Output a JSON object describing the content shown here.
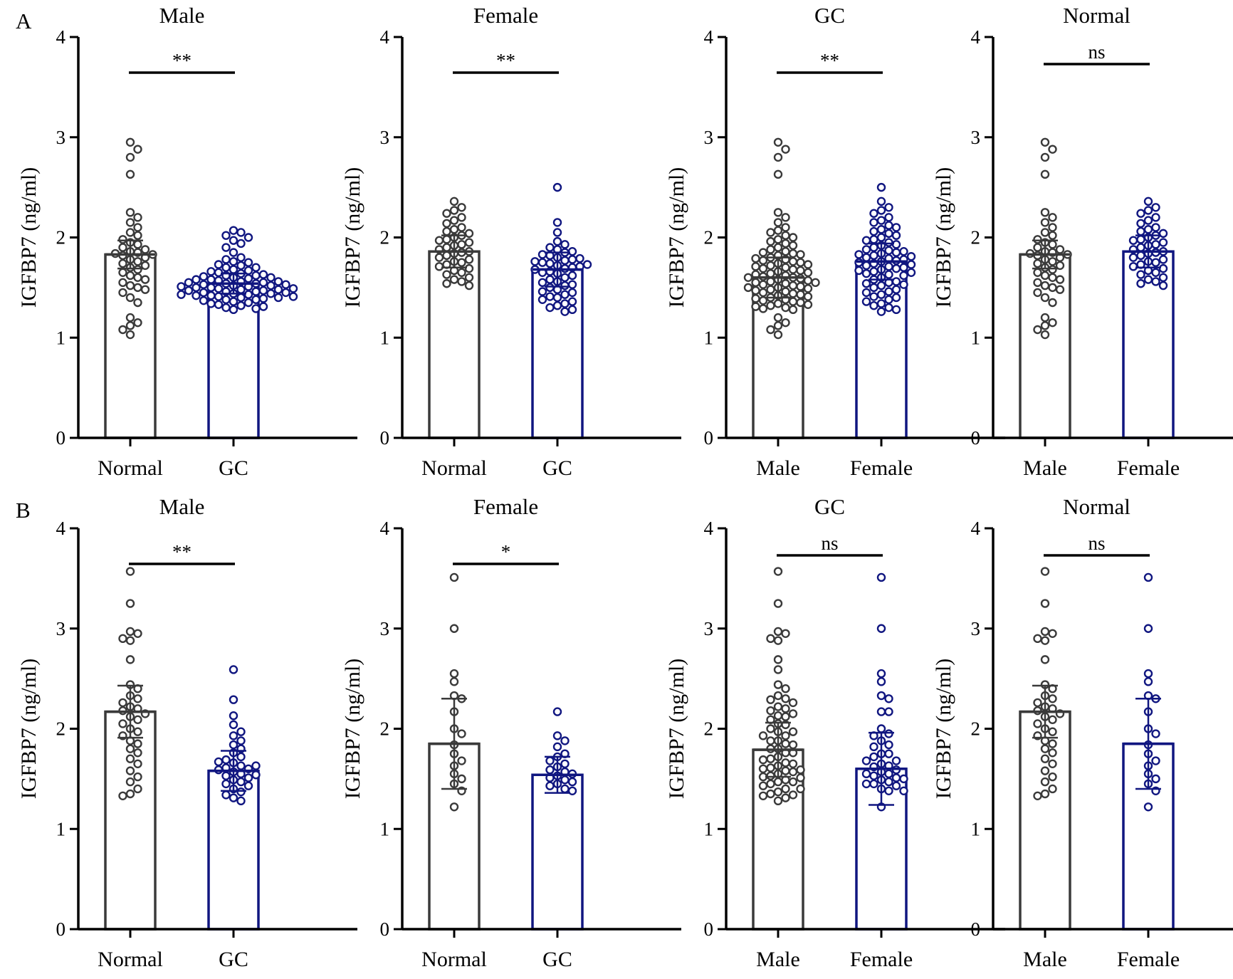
{
  "panel_labels": [
    "A",
    "B"
  ],
  "colors": {
    "normal": "#3a3a3a",
    "gc": "#101680",
    "axis": "#000000"
  },
  "chart_data": [
    {
      "type": "bar",
      "title": "Male",
      "row": "A",
      "ylabel": "IGFBP7 (ng/ml)",
      "ylim": [
        0,
        4
      ],
      "yticks": [
        "0",
        "1",
        "2",
        "3",
        "4"
      ],
      "categories": [
        "Normal",
        "GC"
      ],
      "significance": "**",
      "series": [
        {
          "category": "Normal",
          "color": "#3a3a3a",
          "mean": 1.83,
          "sd": 0.14,
          "points": [
            2.95,
            2.88,
            2.8,
            2.63,
            2.25,
            2.2,
            2.15,
            2.1,
            2.05,
            2.02,
            1.98,
            1.95,
            1.93,
            1.9,
            1.88,
            1.86,
            1.85,
            1.84,
            1.83,
            1.82,
            1.8,
            1.78,
            1.76,
            1.74,
            1.72,
            1.7,
            1.68,
            1.65,
            1.62,
            1.6,
            1.58,
            1.55,
            1.52,
            1.5,
            1.48,
            1.45,
            1.4,
            1.35,
            1.2,
            1.15,
            1.12,
            1.08,
            1.03
          ]
        },
        {
          "category": "GC",
          "color": "#101680",
          "mean": 1.54,
          "sd": 0.1,
          "points": [
            2.07,
            2.05,
            2.02,
            2.0,
            1.97,
            1.94,
            1.9,
            1.85,
            1.8,
            1.78,
            1.76,
            1.75,
            1.73,
            1.72,
            1.7,
            1.7,
            1.68,
            1.67,
            1.66,
            1.65,
            1.64,
            1.63,
            1.62,
            1.62,
            1.61,
            1.6,
            1.6,
            1.59,
            1.58,
            1.58,
            1.57,
            1.56,
            1.56,
            1.55,
            1.55,
            1.54,
            1.54,
            1.53,
            1.53,
            1.52,
            1.52,
            1.51,
            1.51,
            1.5,
            1.5,
            1.49,
            1.49,
            1.48,
            1.48,
            1.47,
            1.47,
            1.46,
            1.46,
            1.45,
            1.45,
            1.44,
            1.44,
            1.43,
            1.43,
            1.42,
            1.42,
            1.41,
            1.41,
            1.4,
            1.4,
            1.39,
            1.38,
            1.38,
            1.37,
            1.36,
            1.35,
            1.34,
            1.33,
            1.32,
            1.31,
            1.3,
            1.29,
            1.28
          ]
        }
      ]
    },
    {
      "type": "bar",
      "title": "Female",
      "row": "A",
      "ylabel": "IGFBP7 (ng/ml)",
      "ylim": [
        0,
        4
      ],
      "yticks": [
        "0",
        "1",
        "2",
        "3",
        "4"
      ],
      "categories": [
        "Normal",
        "GC"
      ],
      "significance": "**",
      "series": [
        {
          "category": "Normal",
          "color": "#3a3a3a",
          "mean": 1.86,
          "sd": 0.16,
          "points": [
            2.36,
            2.3,
            2.27,
            2.24,
            2.2,
            2.17,
            2.14,
            2.1,
            2.08,
            2.06,
            2.04,
            2.02,
            2.0,
            1.98,
            1.97,
            1.95,
            1.93,
            1.92,
            1.9,
            1.88,
            1.86,
            1.85,
            1.84,
            1.82,
            1.8,
            1.78,
            1.76,
            1.75,
            1.73,
            1.71,
            1.69,
            1.67,
            1.65,
            1.63,
            1.6,
            1.58,
            1.56,
            1.54,
            1.52
          ]
        },
        {
          "category": "GC",
          "color": "#101680",
          "mean": 1.68,
          "sd": 0.17,
          "points": [
            2.5,
            2.15,
            2.05,
            1.96,
            1.93,
            1.9,
            1.88,
            1.86,
            1.85,
            1.83,
            1.82,
            1.8,
            1.79,
            1.78,
            1.77,
            1.76,
            1.75,
            1.74,
            1.73,
            1.72,
            1.71,
            1.7,
            1.69,
            1.68,
            1.66,
            1.65,
            1.64,
            1.62,
            1.6,
            1.58,
            1.56,
            1.55,
            1.53,
            1.52,
            1.5,
            1.48,
            1.46,
            1.45,
            1.43,
            1.41,
            1.4,
            1.38,
            1.36,
            1.34,
            1.32,
            1.3,
            1.28,
            1.26
          ]
        }
      ]
    },
    {
      "type": "bar",
      "title": "GC",
      "row": "A",
      "ylabel": "IGFBP7 (ng/ml)",
      "ylim": [
        0,
        4
      ],
      "yticks": [
        "0",
        "1",
        "2",
        "3",
        "4"
      ],
      "categories": [
        "Male",
        "Female"
      ],
      "significance": "**",
      "series": [
        {
          "category": "Male",
          "color": "#3a3a3a",
          "mean": 1.6,
          "sd": 0.2,
          "points": [
            2.95,
            2.88,
            2.8,
            2.63,
            2.25,
            2.2,
            2.15,
            2.1,
            2.07,
            2.05,
            2.02,
            2.0,
            1.98,
            1.96,
            1.94,
            1.92,
            1.9,
            1.88,
            1.86,
            1.85,
            1.84,
            1.83,
            1.82,
            1.8,
            1.79,
            1.78,
            1.77,
            1.76,
            1.75,
            1.74,
            1.73,
            1.72,
            1.71,
            1.7,
            1.69,
            1.68,
            1.67,
            1.66,
            1.65,
            1.64,
            1.63,
            1.62,
            1.61,
            1.6,
            1.6,
            1.59,
            1.58,
            1.57,
            1.56,
            1.55,
            1.55,
            1.54,
            1.53,
            1.52,
            1.51,
            1.5,
            1.5,
            1.49,
            1.48,
            1.47,
            1.46,
            1.45,
            1.44,
            1.43,
            1.42,
            1.41,
            1.4,
            1.39,
            1.38,
            1.37,
            1.36,
            1.35,
            1.34,
            1.33,
            1.32,
            1.31,
            1.3,
            1.29,
            1.28,
            1.2,
            1.15,
            1.12,
            1.08,
            1.03
          ]
        },
        {
          "category": "Female",
          "color": "#101680",
          "mean": 1.76,
          "sd": 0.18,
          "points": [
            2.5,
            2.36,
            2.3,
            2.27,
            2.24,
            2.2,
            2.17,
            2.15,
            2.12,
            2.1,
            2.08,
            2.06,
            2.04,
            2.02,
            2.0,
            1.98,
            1.97,
            1.95,
            1.93,
            1.92,
            1.9,
            1.88,
            1.87,
            1.86,
            1.85,
            1.84,
            1.83,
            1.82,
            1.81,
            1.8,
            1.79,
            1.78,
            1.77,
            1.76,
            1.75,
            1.74,
            1.73,
            1.72,
            1.71,
            1.7,
            1.69,
            1.68,
            1.67,
            1.66,
            1.65,
            1.64,
            1.63,
            1.62,
            1.6,
            1.58,
            1.56,
            1.55,
            1.54,
            1.53,
            1.52,
            1.5,
            1.48,
            1.46,
            1.45,
            1.43,
            1.41,
            1.4,
            1.38,
            1.36,
            1.34,
            1.32,
            1.3,
            1.28,
            1.26
          ]
        }
      ]
    },
    {
      "type": "bar",
      "title": "Normal",
      "row": "A",
      "ylabel": "IGFBP7 (ng/ml)",
      "ylim": [
        0,
        4
      ],
      "yticks": [
        "0",
        "1",
        "2",
        "3",
        "4"
      ],
      "categories": [
        "Male",
        "Female"
      ],
      "significance": "ns",
      "series": [
        {
          "category": "Male",
          "color": "#3a3a3a",
          "mean": 1.83,
          "sd": 0.14,
          "points": [
            2.95,
            2.88,
            2.8,
            2.63,
            2.25,
            2.2,
            2.15,
            2.1,
            2.05,
            2.02,
            1.98,
            1.95,
            1.93,
            1.9,
            1.88,
            1.86,
            1.85,
            1.84,
            1.83,
            1.82,
            1.8,
            1.78,
            1.76,
            1.74,
            1.72,
            1.7,
            1.68,
            1.65,
            1.62,
            1.6,
            1.58,
            1.55,
            1.52,
            1.5,
            1.48,
            1.45,
            1.4,
            1.35,
            1.2,
            1.15,
            1.12,
            1.08,
            1.03
          ]
        },
        {
          "category": "Female",
          "color": "#101680",
          "mean": 1.86,
          "sd": 0.16,
          "points": [
            2.36,
            2.3,
            2.27,
            2.24,
            2.2,
            2.17,
            2.14,
            2.1,
            2.08,
            2.06,
            2.04,
            2.02,
            2.0,
            1.98,
            1.97,
            1.95,
            1.93,
            1.92,
            1.9,
            1.88,
            1.86,
            1.85,
            1.84,
            1.82,
            1.8,
            1.78,
            1.76,
            1.75,
            1.73,
            1.71,
            1.69,
            1.67,
            1.65,
            1.63,
            1.6,
            1.58,
            1.56,
            1.54,
            1.52
          ]
        }
      ]
    },
    {
      "type": "bar",
      "title": "Male",
      "row": "B",
      "ylabel": "IGFBP7 (ng/ml)",
      "ylim": [
        0,
        4
      ],
      "yticks": [
        "0",
        "1",
        "2",
        "3",
        "4"
      ],
      "categories": [
        "Normal",
        "GC"
      ],
      "significance": "**",
      "series": [
        {
          "category": "Normal",
          "color": "#3a3a3a",
          "mean": 2.17,
          "sd": 0.26,
          "points": [
            3.57,
            3.25,
            2.97,
            2.95,
            2.9,
            2.88,
            2.69,
            2.44,
            2.4,
            2.33,
            2.3,
            2.26,
            2.22,
            2.2,
            2.18,
            2.15,
            2.12,
            2.09,
            2.05,
            2.0,
            1.97,
            1.93,
            1.88,
            1.85,
            1.8,
            1.76,
            1.7,
            1.65,
            1.58,
            1.52,
            1.47,
            1.4,
            1.35,
            1.33
          ]
        },
        {
          "category": "GC",
          "color": "#101680",
          "mean": 1.58,
          "sd": 0.2,
          "points": [
            2.59,
            2.29,
            2.13,
            2.04,
            1.97,
            1.93,
            1.88,
            1.84,
            1.8,
            1.76,
            1.72,
            1.69,
            1.66,
            1.63,
            1.61,
            1.6,
            1.59,
            1.57,
            1.55,
            1.53,
            1.51,
            1.49,
            1.47,
            1.45,
            1.43,
            1.4,
            1.37,
            1.34,
            1.31,
            1.28,
            1.63,
            1.67,
            1.54
          ]
        }
      ]
    },
    {
      "type": "bar",
      "title": "Female",
      "row": "B",
      "ylabel": "IGFBP7 (ng/ml)",
      "ylim": [
        0,
        4
      ],
      "yticks": [
        "0",
        "1",
        "2",
        "3",
        "4"
      ],
      "categories": [
        "Normal",
        "GC"
      ],
      "significance": "*",
      "series": [
        {
          "category": "Normal",
          "color": "#3a3a3a",
          "mean": 1.85,
          "sd": 0.45,
          "points": [
            3.51,
            3.0,
            2.55,
            2.47,
            2.33,
            2.3,
            2.17,
            2.0,
            1.95,
            1.84,
            1.75,
            1.68,
            1.63,
            1.55,
            1.5,
            1.45,
            1.38,
            1.22
          ]
        },
        {
          "category": "GC",
          "color": "#101680",
          "mean": 1.54,
          "sd": 0.18,
          "points": [
            2.17,
            1.93,
            1.88,
            1.82,
            1.75,
            1.72,
            1.68,
            1.65,
            1.62,
            1.59,
            1.57,
            1.55,
            1.53,
            1.51,
            1.49,
            1.47,
            1.45,
            1.43,
            1.4,
            1.38
          ]
        }
      ]
    },
    {
      "type": "bar",
      "title": "GC",
      "row": "B",
      "ylabel": "IGFBP7 (ng/ml)",
      "ylim": [
        0,
        4
      ],
      "yticks": [
        "0",
        "1",
        "2",
        "3",
        "4"
      ],
      "categories": [
        "Male",
        "Female"
      ],
      "significance": "ns",
      "series": [
        {
          "category": "Male",
          "color": "#3a3a3a",
          "mean": 1.79,
          "sd": 0.27,
          "points": [
            3.57,
            3.25,
            2.97,
            2.95,
            2.9,
            2.88,
            2.69,
            2.59,
            2.44,
            2.4,
            2.33,
            2.3,
            2.29,
            2.26,
            2.22,
            2.2,
            2.18,
            2.15,
            2.13,
            2.12,
            2.09,
            2.05,
            2.04,
            2.0,
            1.97,
            1.97,
            1.93,
            1.93,
            1.88,
            1.88,
            1.85,
            1.84,
            1.8,
            1.8,
            1.76,
            1.76,
            1.72,
            1.7,
            1.69,
            1.66,
            1.65,
            1.63,
            1.61,
            1.6,
            1.59,
            1.58,
            1.57,
            1.55,
            1.53,
            1.52,
            1.51,
            1.49,
            1.47,
            1.47,
            1.45,
            1.43,
            1.4,
            1.4,
            1.37,
            1.35,
            1.34,
            1.33,
            1.31,
            1.28
          ]
        },
        {
          "category": "Female",
          "color": "#101680",
          "mean": 1.6,
          "sd": 0.36,
          "points": [
            3.51,
            3.0,
            2.55,
            2.47,
            2.33,
            2.3,
            2.17,
            2.17,
            2.0,
            1.95,
            1.93,
            1.88,
            1.84,
            1.82,
            1.75,
            1.75,
            1.72,
            1.68,
            1.68,
            1.65,
            1.63,
            1.62,
            1.59,
            1.57,
            1.55,
            1.55,
            1.53,
            1.51,
            1.5,
            1.49,
            1.47,
            1.45,
            1.45,
            1.43,
            1.4,
            1.38,
            1.38,
            1.22
          ]
        }
      ]
    },
    {
      "type": "bar",
      "title": "Normal",
      "row": "B",
      "ylabel": "IGFBP7 (ng/ml)",
      "ylim": [
        0,
        4
      ],
      "yticks": [
        "0",
        "1",
        "2",
        "3",
        "4"
      ],
      "categories": [
        "Male",
        "Female"
      ],
      "significance": "ns",
      "series": [
        {
          "category": "Male",
          "color": "#3a3a3a",
          "mean": 2.17,
          "sd": 0.26,
          "points": [
            3.57,
            3.25,
            2.97,
            2.95,
            2.9,
            2.88,
            2.69,
            2.44,
            2.4,
            2.33,
            2.3,
            2.26,
            2.22,
            2.2,
            2.18,
            2.15,
            2.12,
            2.09,
            2.05,
            2.0,
            1.97,
            1.93,
            1.88,
            1.85,
            1.8,
            1.76,
            1.7,
            1.65,
            1.58,
            1.52,
            1.47,
            1.4,
            1.35,
            1.33
          ]
        },
        {
          "category": "Female",
          "color": "#101680",
          "mean": 1.85,
          "sd": 0.45,
          "points": [
            3.51,
            3.0,
            2.55,
            2.47,
            2.33,
            2.3,
            2.17,
            2.0,
            1.95,
            1.84,
            1.75,
            1.68,
            1.63,
            1.55,
            1.5,
            1.45,
            1.38,
            1.22
          ]
        }
      ]
    }
  ]
}
